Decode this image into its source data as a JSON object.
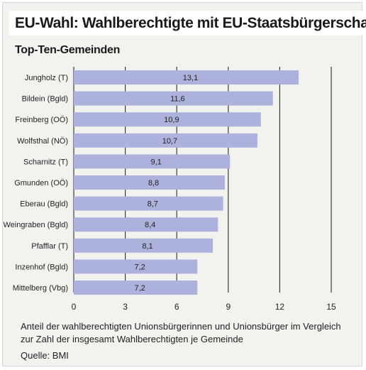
{
  "colors": {
    "bar": "#adb2dc",
    "grid": "#3b3b3b",
    "text": "#222222"
  },
  "chart_data": {
    "type": "bar",
    "orientation": "horizontal",
    "title": "EU-Wahl: Wahlberechtigte mit EU-Staatsbürgerschaft",
    "subtitle": "Top-Ten-Gemeinden",
    "categories": [
      "Jungholz (T)",
      "Bildein (Bgld)",
      "Freinberg (OÖ)",
      "Wolfsthal (NÖ)",
      "Scharnitz (T)",
      "Gmunden (OÖ)",
      "Eberau (Bgld)",
      "Weingraben (Bgld)",
      "Pfafflar (T)",
      "Inzenhof (Bgld)",
      "Mittelberg (Vbg)"
    ],
    "values": [
      13.1,
      11.6,
      10.9,
      10.7,
      9.1,
      8.8,
      8.7,
      8.4,
      8.1,
      7.2,
      7.2
    ],
    "value_labels": [
      "13,1",
      "11,6",
      "10,9",
      "10,7",
      "9,1",
      "8,8",
      "8,7",
      "8,4",
      "8,1",
      "7,2",
      "7,2"
    ],
    "xlim": [
      0,
      15
    ],
    "xticks": [
      0,
      3,
      6,
      9,
      12,
      15
    ],
    "xtick_labels": [
      "0",
      "3",
      "6",
      "9",
      "12",
      "15"
    ],
    "grid": true,
    "note": "Anteil der wahlberechtigten Unionsbürgerinnen und Unionsbürger im Vergleich zur Zahl der insgesamt Wahlberechtigten je Gemeinde",
    "source": "Quelle: BMI"
  }
}
